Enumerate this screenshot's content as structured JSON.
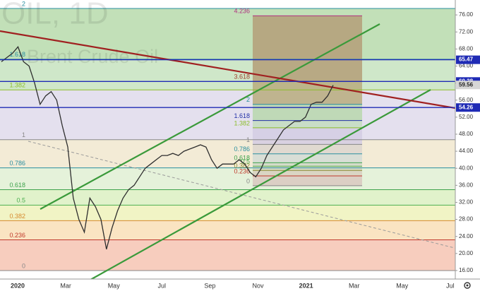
{
  "chart_data": {
    "type": "line",
    "watermark": {
      "symbol": "OIL, 1D",
      "name": "Brent Crude Oil"
    },
    "color": "#2e2e2e",
    "values": [
      65,
      66,
      67,
      68.5,
      65,
      64,
      60,
      55,
      57,
      58,
      56,
      50,
      45,
      33,
      28,
      25,
      33,
      31,
      28,
      21,
      26,
      30,
      33,
      35,
      36,
      38,
      40,
      41,
      42,
      43,
      43,
      43.5,
      43,
      44,
      44.5,
      45,
      45.5,
      45,
      42,
      40,
      41,
      41,
      41,
      42,
      41,
      39,
      38,
      40,
      43,
      45,
      47,
      49,
      50,
      51,
      51,
      52,
      55,
      55.5,
      55.5,
      57,
      59.5
    ],
    "x_labels": [
      "2020",
      "Mar",
      "May",
      "Jul",
      "Sep",
      "Nov",
      "2021",
      "Mar",
      "May",
      "Jul"
    ],
    "ylim": [
      14,
      79.5
    ],
    "yticks": [
      {
        "value": 16,
        "label": "16.00"
      },
      {
        "value": 20,
        "label": "20.00"
      },
      {
        "value": 24,
        "label": "24.00"
      },
      {
        "value": 28,
        "label": "28.00"
      },
      {
        "value": 32,
        "label": "32.00"
      },
      {
        "value": 36,
        "label": "36.00"
      },
      {
        "value": 40,
        "label": "40.00"
      },
      {
        "value": 44,
        "label": "44.00"
      },
      {
        "value": 48,
        "label": "48.00"
      },
      {
        "value": 52,
        "label": "52.00"
      },
      {
        "value": 56,
        "label": "56.00"
      },
      {
        "value": 60,
        "label": "60.00"
      },
      {
        "value": 64,
        "label": "64.00"
      },
      {
        "value": 68,
        "label": "68.00"
      },
      {
        "value": 72,
        "label": "72.00"
      },
      {
        "value": 76,
        "label": "76.00"
      }
    ],
    "price_lines": [
      {
        "value": 65.47,
        "label": "65.47"
      },
      {
        "value": 60.38,
        "label": "60.38"
      },
      {
        "value": 59.56,
        "label": "59.56"
      },
      {
        "value": 54.26,
        "label": "54.26"
      }
    ],
    "price_line_colors": [
      "#1f2bb5",
      "#1f2bb5",
      "#d6d6d6",
      "#1f2bb5"
    ],
    "fib_left": {
      "levels": [
        0,
        0.236,
        0.382,
        0.5,
        0.618,
        0.786,
        1,
        1.382,
        1.618,
        2
      ],
      "prices": [
        16,
        23.2,
        27.7,
        31.35,
        34.97,
        40.1,
        46.7,
        58.4,
        65.6,
        77.5
      ],
      "line_colors": [
        "#888888",
        "#c0392b",
        "#d68a2e",
        "#4caf50",
        "#3fa34d",
        "#2a8fa0",
        "#888888",
        "#8bbd2a",
        "#2a8fa0",
        "#2a8fa0"
      ],
      "zone_colors": [
        "#f6c4b3",
        "#f9dfb7",
        "#eef2bb",
        "#dcf0c2",
        "#e0f0d4",
        "#f1e8cf",
        "#dfdaeb",
        "#c7e3bf",
        "#b7dbac"
      ]
    },
    "fib_right": {
      "levels": [
        0,
        0.236,
        0.382,
        0.5,
        0.618,
        0.786,
        1,
        1.382,
        1.618,
        2,
        3.618,
        4.236
      ],
      "prices": [
        35.9,
        38.2,
        39.5,
        40.5,
        41.3,
        43.4,
        45.6,
        49.5,
        51.2,
        55.0,
        60.4,
        75.8
      ],
      "line_colors": [
        "#888888",
        "#c0392b",
        "#8a8a2e",
        "#4caf50",
        "#3fa34d",
        "#2a8fa0",
        "#888888",
        "#8bbd2a",
        "#2230a8",
        "#2a8fa0",
        "#a0402e",
        "#b03080"
      ],
      "zone_colors": [
        "#d9c9c0",
        "#d8d0c0",
        "#d4d6bf",
        "#d0d8c8",
        "#d2dcd6",
        "#dcd6cf",
        "#d3cce3",
        "#c4dcc0",
        "#b9d7ad",
        "#b9ac7e",
        "#b49e78"
      ]
    }
  }
}
